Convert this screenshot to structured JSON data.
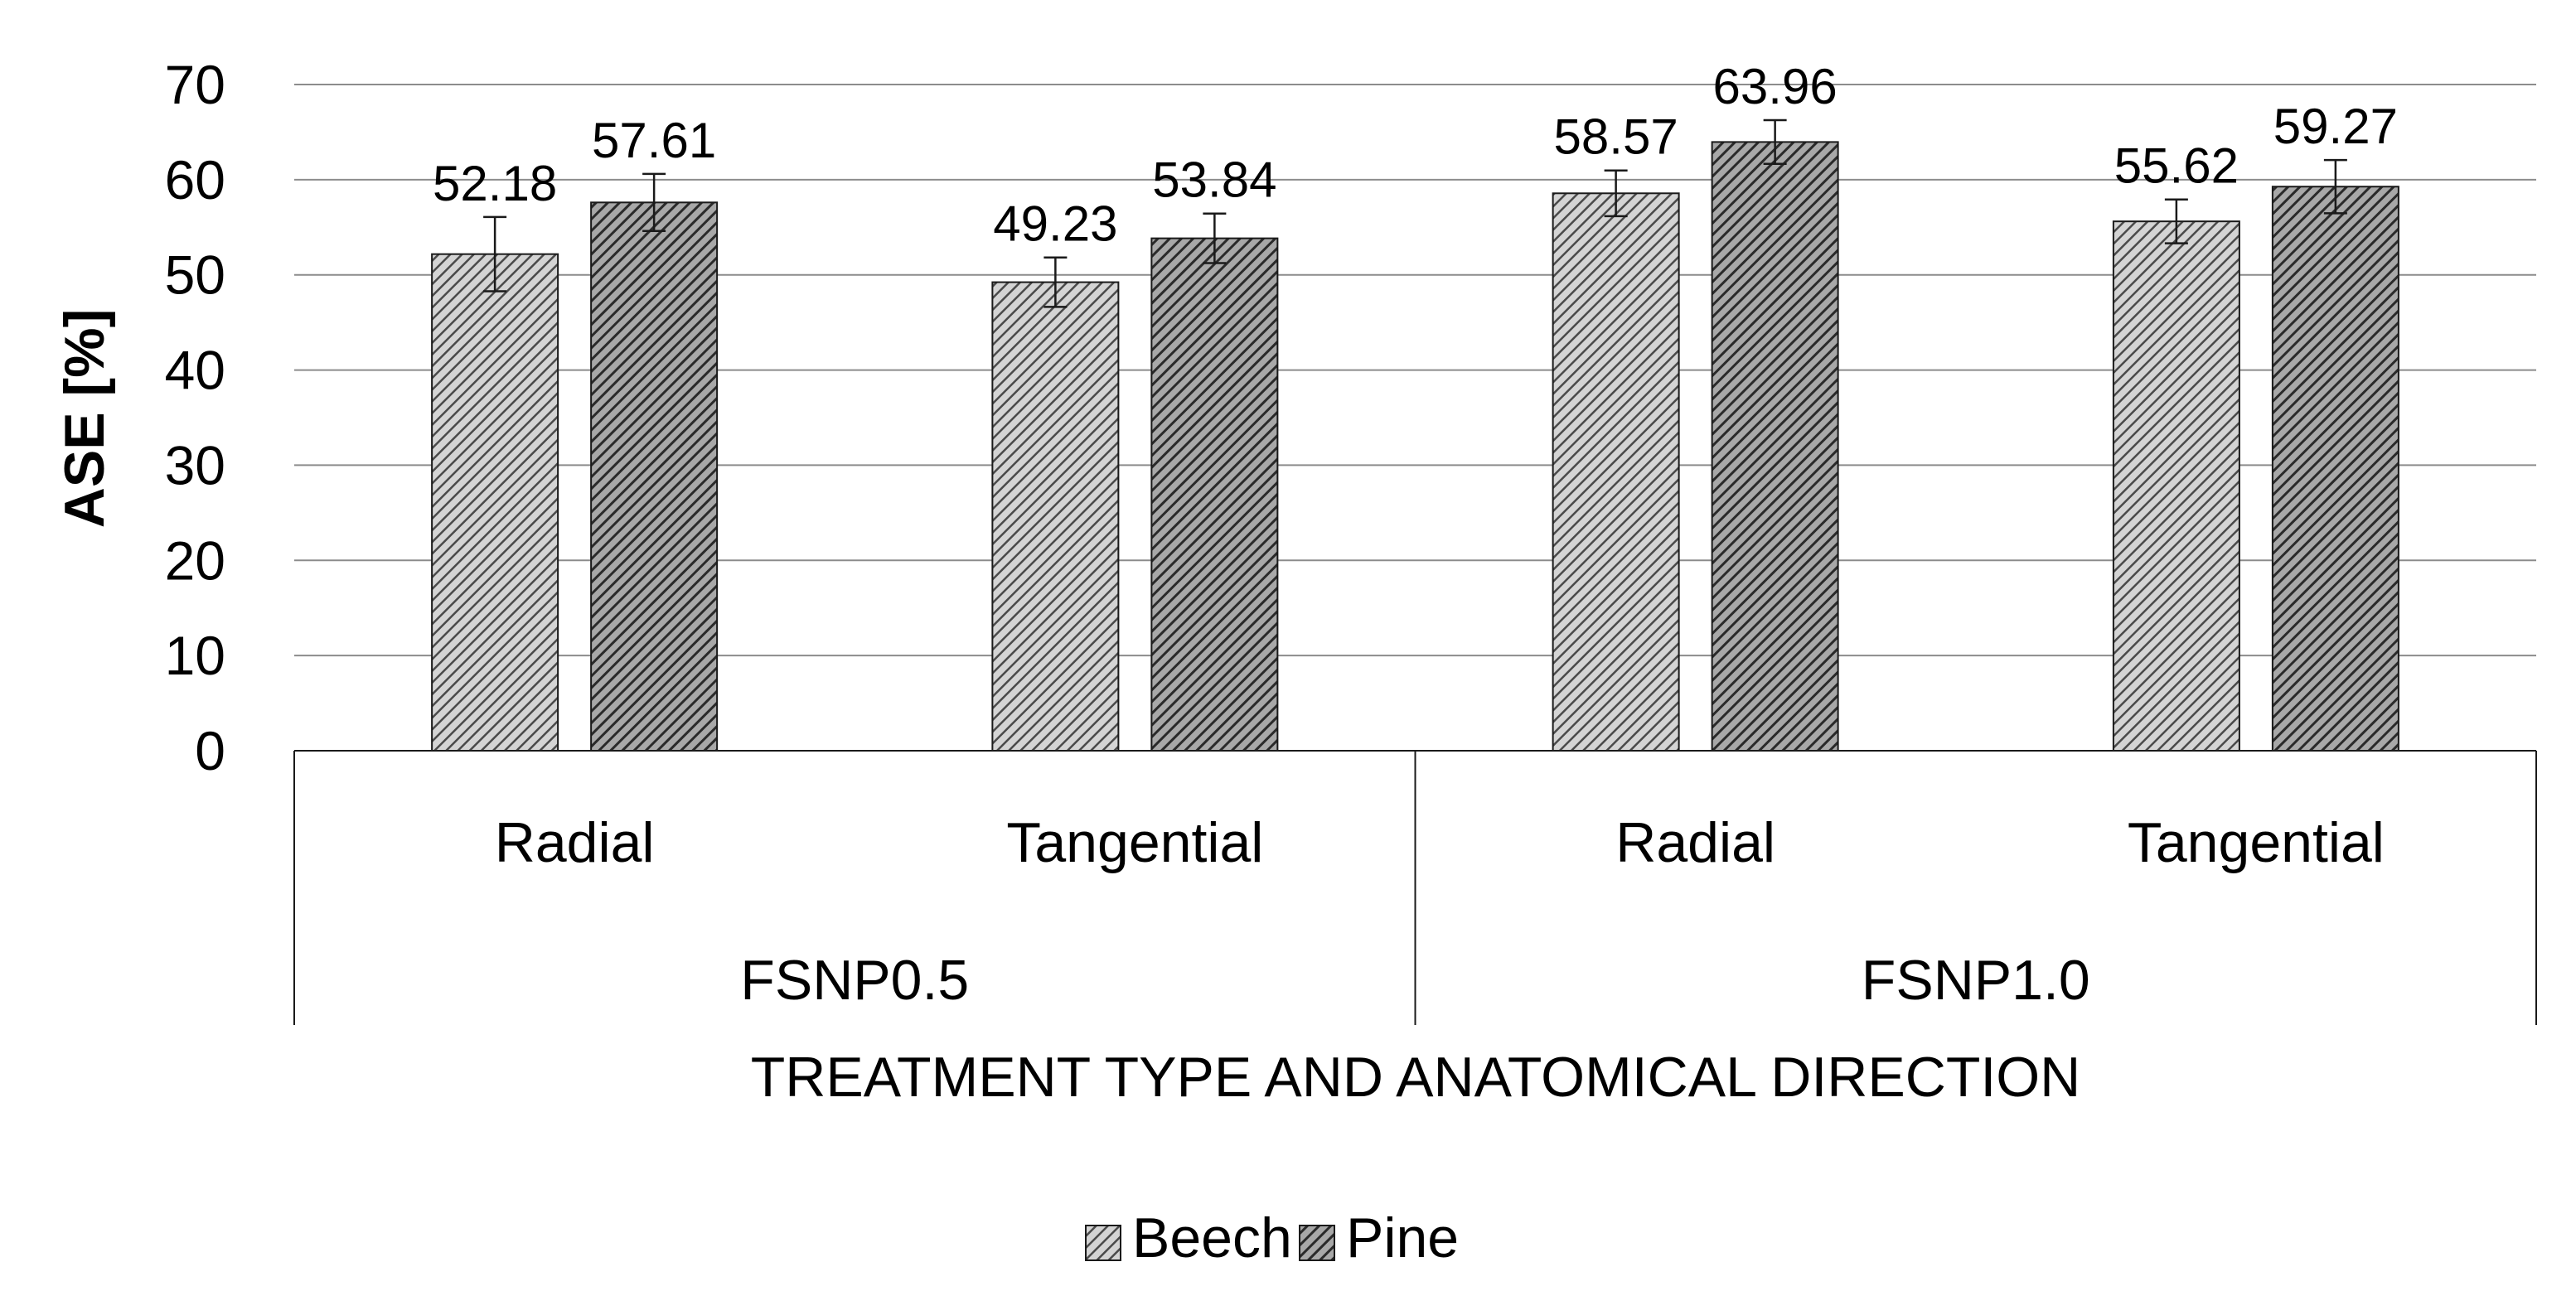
{
  "chart_data": {
    "type": "bar",
    "title": "",
    "ylabel": "ASE [%]",
    "xlabel": "TREATMENT TYPE AND ANATOMICAL DIRECTION",
    "ylim": [
      0,
      70
    ],
    "yticks": [
      0,
      10,
      20,
      30,
      40,
      50,
      60,
      70
    ],
    "grid": true,
    "legend_position": "bottom",
    "groups": [
      {
        "label": "FSNP0.5",
        "categories": [
          "Radial",
          "Tangential"
        ]
      },
      {
        "label": "FSNP1.0",
        "categories": [
          "Radial",
          "Tangential"
        ]
      }
    ],
    "categories": [
      "Radial",
      "Tangential",
      "Radial",
      "Tangential"
    ],
    "series": [
      {
        "name": "Beech",
        "values": [
          52.18,
          49.23,
          58.57,
          55.62
        ],
        "error": [
          3.9,
          2.6,
          2.4,
          2.3
        ],
        "fill": "#d4d4d4",
        "hatch": "#4a4a4a"
      },
      {
        "name": "Pine",
        "values": [
          57.61,
          53.84,
          63.96,
          59.27
        ],
        "error": [
          3.0,
          2.6,
          2.3,
          2.8
        ],
        "fill": "#a8a8a8",
        "hatch": "#2a2a2a"
      }
    ],
    "data_labels": [
      [
        "52.18",
        "49.23",
        "58.57",
        "55.62"
      ],
      [
        "57.61",
        "53.84",
        "63.96",
        "59.27"
      ]
    ]
  }
}
